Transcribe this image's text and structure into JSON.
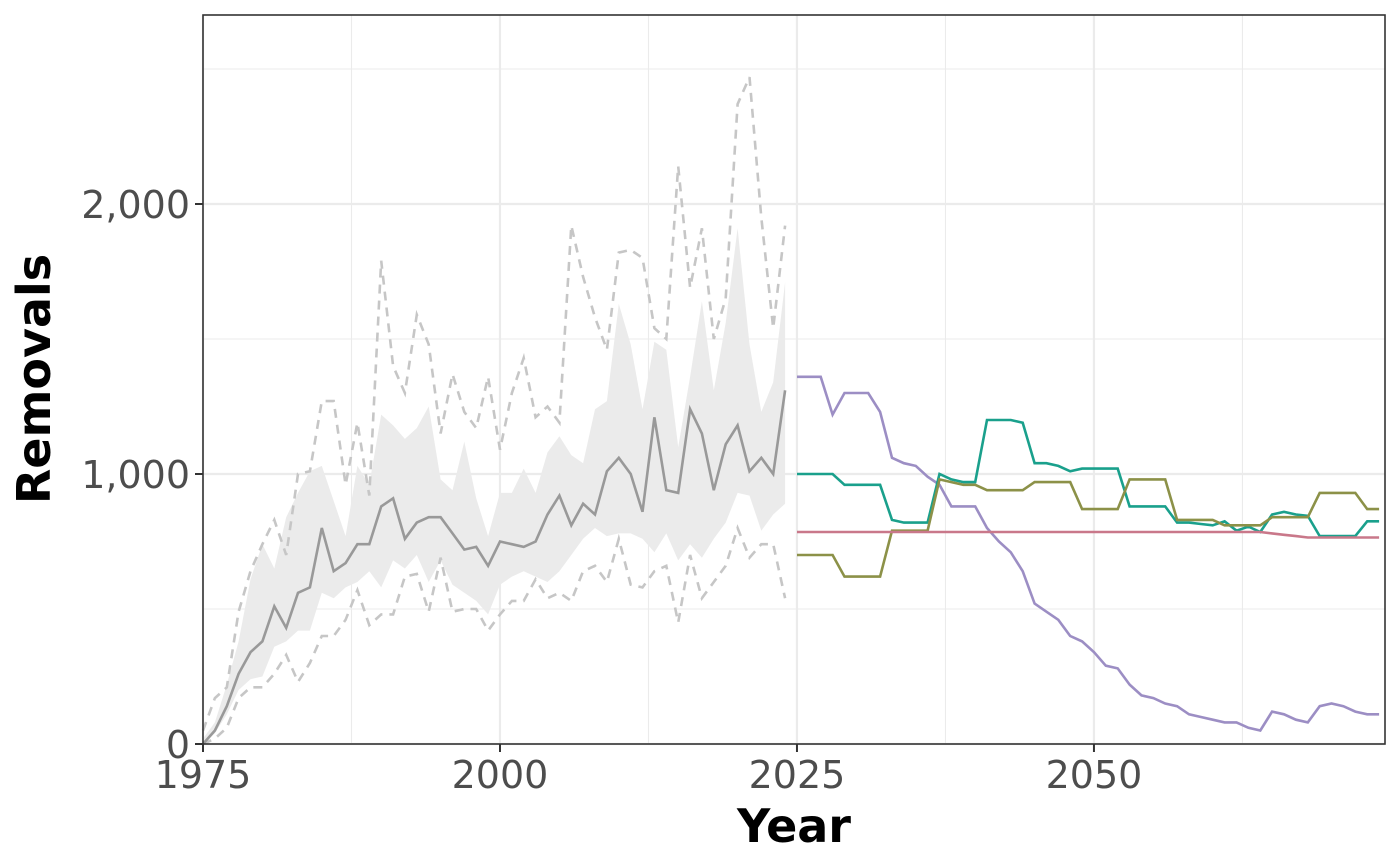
{
  "chart_data": {
    "type": "line",
    "xlabel": "Year",
    "ylabel": "Removals",
    "xlim": [
      1975,
      2074.5
    ],
    "ylim": [
      0,
      2700
    ],
    "x_ticks": [
      1975,
      2000,
      2025,
      2050
    ],
    "x_tick_labels": [
      "1975",
      "2000",
      "2025",
      "2050"
    ],
    "y_ticks": [
      0,
      1000,
      2000
    ],
    "y_tick_labels": [
      "0",
      "1,000",
      "2,000"
    ],
    "grid": true,
    "legend": "none",
    "historical": {
      "x": [
        1975,
        1976,
        1977,
        1978,
        1979,
        1980,
        1981,
        1982,
        1983,
        1984,
        1985,
        1986,
        1987,
        1988,
        1989,
        1990,
        1991,
        1992,
        1993,
        1994,
        1995,
        1996,
        1997,
        1998,
        1999,
        2000,
        2001,
        2002,
        2003,
        2004,
        2005,
        2006,
        2007,
        2008,
        2009,
        2010,
        2011,
        2012,
        2013,
        2014,
        2015,
        2016,
        2017,
        2018,
        2019,
        2020,
        2021,
        2022,
        2023,
        2024
      ],
      "median": [
        0,
        50,
        140,
        260,
        340,
        380,
        510,
        430,
        560,
        580,
        800,
        640,
        670,
        740,
        740,
        880,
        910,
        760,
        820,
        840,
        840,
        780,
        720,
        730,
        660,
        750,
        740,
        730,
        750,
        850,
        920,
        810,
        890,
        850,
        1010,
        1060,
        1000,
        860,
        1210,
        940,
        930,
        1240,
        1150,
        940,
        1110,
        1180,
        1010,
        1060,
        1000,
        1310
      ],
      "band_lower": [
        0,
        40,
        110,
        200,
        240,
        250,
        360,
        380,
        420,
        420,
        560,
        540,
        580,
        600,
        640,
        580,
        680,
        650,
        700,
        600,
        680,
        590,
        560,
        530,
        480,
        590,
        620,
        640,
        620,
        600,
        640,
        700,
        760,
        800,
        770,
        780,
        780,
        760,
        710,
        780,
        680,
        740,
        690,
        760,
        820,
        930,
        920,
        790,
        850,
        890
      ],
      "band_upper": [
        20,
        80,
        220,
        380,
        610,
        740,
        650,
        840,
        930,
        1010,
        1030,
        900,
        770,
        1030,
        960,
        1220,
        1180,
        1130,
        1170,
        1250,
        980,
        940,
        1120,
        910,
        770,
        930,
        930,
        1020,
        930,
        1080,
        1140,
        1070,
        1040,
        1240,
        1270,
        1630,
        1480,
        1240,
        1490,
        1460,
        1100,
        1360,
        1640,
        1310,
        1560,
        1910,
        1480,
        1230,
        1340,
        1710
      ]
    },
    "historical_quantiles_dashed": {
      "lower": [
        0,
        20,
        60,
        170,
        210,
        210,
        260,
        330,
        230,
        300,
        400,
        400,
        460,
        570,
        440,
        480,
        480,
        620,
        630,
        490,
        690,
        490,
        500,
        500,
        420,
        480,
        530,
        530,
        610,
        540,
        560,
        530,
        640,
        660,
        600,
        760,
        590,
        580,
        640,
        660,
        450,
        700,
        540,
        600,
        660,
        800,
        690,
        740,
        740,
        540
      ],
      "upper": [
        50,
        170,
        210,
        490,
        640,
        740,
        830,
        700,
        1000,
        1010,
        1270,
        1270,
        960,
        1190,
        920,
        1790,
        1400,
        1300,
        1590,
        1480,
        1150,
        1370,
        1230,
        1170,
        1360,
        1090,
        1300,
        1430,
        1210,
        1250,
        1190,
        1920,
        1730,
        1580,
        1460,
        1820,
        1830,
        1800,
        1540,
        1500,
        2140,
        1690,
        1910,
        1500,
        1650,
        2370,
        2470,
        1950,
        1540,
        1920
      ]
    },
    "x_forecast": [
      2025,
      2026,
      2027,
      2028,
      2029,
      2030,
      2031,
      2032,
      2033,
      2034,
      2035,
      2036,
      2037,
      2038,
      2039,
      2040,
      2041,
      2042,
      2043,
      2044,
      2045,
      2046,
      2047,
      2048,
      2049,
      2050,
      2051,
      2052,
      2053,
      2054,
      2055,
      2056,
      2057,
      2058,
      2059,
      2060,
      2061,
      2062,
      2063,
      2064,
      2065,
      2066,
      2067,
      2068,
      2069,
      2070,
      2071,
      2072,
      2073,
      2074
    ],
    "series": [
      {
        "color": "#9c8ec4",
        "values": [
          1360,
          1360,
          1360,
          1220,
          1300,
          1300,
          1300,
          1230,
          1060,
          1040,
          1030,
          990,
          960,
          880,
          880,
          880,
          800,
          750,
          710,
          640,
          520,
          490,
          460,
          400,
          380,
          340,
          290,
          280,
          220,
          180,
          170,
          150,
          140,
          110,
          100,
          90,
          80,
          80,
          60,
          50,
          120,
          110,
          90,
          80,
          140,
          150,
          140,
          120,
          110,
          110
        ]
      },
      {
        "color": "#1aa08c",
        "values": [
          1000,
          1000,
          1000,
          1000,
          960,
          960,
          960,
          960,
          830,
          820,
          820,
          820,
          1000,
          980,
          970,
          970,
          1200,
          1200,
          1200,
          1190,
          1040,
          1040,
          1030,
          1010,
          1020,
          1020,
          1020,
          1020,
          880,
          880,
          880,
          880,
          820,
          820,
          815,
          810,
          825,
          790,
          805,
          785,
          850,
          860,
          850,
          845,
          770,
          770,
          770,
          770,
          825,
          825
        ]
      },
      {
        "color": "#8c9148",
        "values": [
          700,
          700,
          700,
          700,
          620,
          620,
          620,
          620,
          790,
          790,
          790,
          790,
          980,
          970,
          960,
          960,
          940,
          940,
          940,
          940,
          970,
          970,
          970,
          970,
          870,
          870,
          870,
          870,
          980,
          980,
          980,
          980,
          830,
          830,
          830,
          830,
          810,
          810,
          810,
          810,
          840,
          840,
          840,
          840,
          930,
          930,
          930,
          930,
          870,
          870
        ]
      },
      {
        "color": "#c9788a",
        "values": [
          785,
          785,
          785,
          785,
          785,
          785,
          785,
          785,
          785,
          785,
          785,
          785,
          785,
          785,
          785,
          785,
          785,
          785,
          785,
          785,
          785,
          785,
          785,
          785,
          785,
          785,
          785,
          785,
          785,
          785,
          785,
          785,
          785,
          785,
          785,
          785,
          785,
          785,
          785,
          785,
          780,
          775,
          770,
          765,
          765,
          765,
          765,
          765,
          765,
          765
        ]
      }
    ],
    "colors": {
      "band": "#ebebeb",
      "median": "#999999",
      "dashed": "#c6c6c6"
    }
  }
}
